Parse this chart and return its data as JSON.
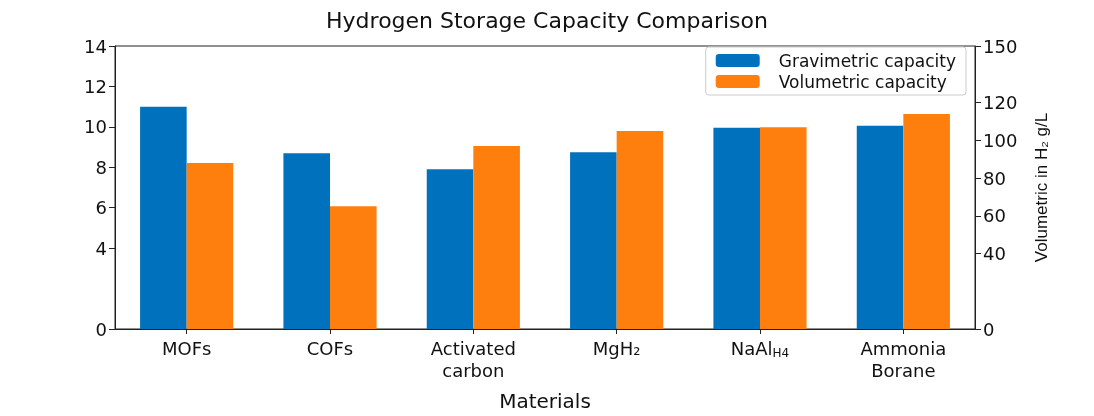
{
  "chart_data": {
    "type": "bar",
    "title": "Hydrogen Storage Capacity Comparison",
    "xlabel": "Materials",
    "y2label": "Volumetric in H₂ g/L",
    "categories": [
      "MOFs",
      "COFs",
      "Activated\ncarbon",
      "MgH₂",
      "NaAl$_{H4}$",
      "Ammonia\nBorane"
    ],
    "series": [
      {
        "name": "Gravimetric capacity",
        "color": "#0072bd",
        "values": [
          11.0,
          8.7,
          7.9,
          8.75,
          9.95,
          10.05
        ]
      },
      {
        "name": "Volumetric capacity",
        "color": "#ff7f0e",
        "axis": "y2",
        "values": [
          88,
          65,
          97,
          105,
          107,
          114
        ]
      }
    ],
    "ylim": [
      0,
      14
    ],
    "yticks": [
      0,
      4,
      6,
      8,
      10,
      12,
      14
    ],
    "y2lim": [
      0,
      150
    ],
    "y2ticks": [
      0,
      40,
      60,
      80,
      100,
      120,
      150
    ],
    "legend": "top right",
    "grid": false
  }
}
